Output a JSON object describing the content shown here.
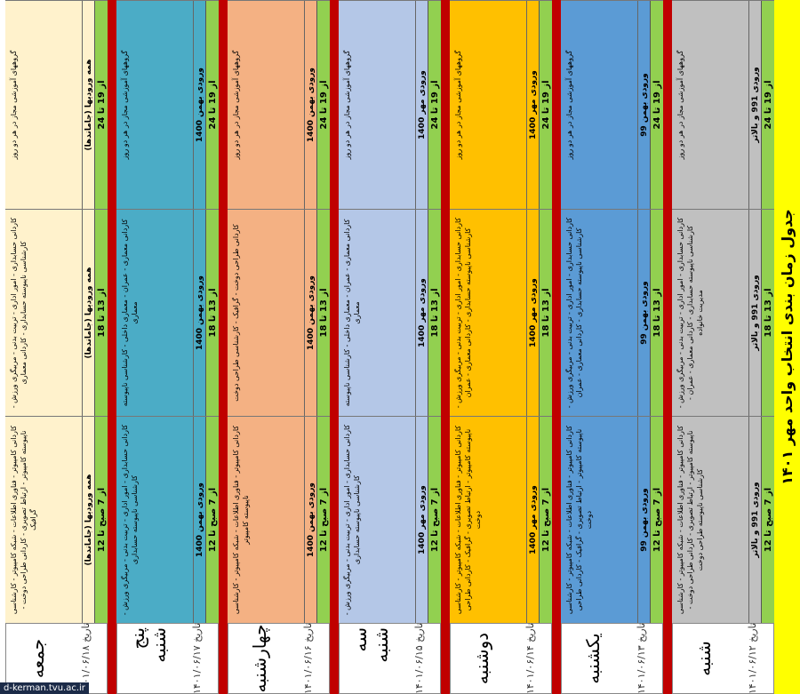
{
  "title": "جدول زمان بندی انتخاب واحد مهر ۱۴۰۱",
  "days": [
    {
      "name": "شنبه",
      "date": "تاریخ ۱۴۰۱/۰۶/۱۲",
      "color": "#c0c0c0",
      "slots": [
        {
          "time": "از 7 صبح تا 12",
          "entry": "ورودی 991 و بالاتر",
          "majors": "کاردانی کامپیوتر - فناوری اطلاعات - شبکه کامپیوتر - کارشناسی ناپیوسته کامپیوتر - ارتباط تصویری - کاردانی طراحی دوخت - کارشناسی ناپیوسته طراحی دوخت"
        },
        {
          "time": "از 13 تا 18",
          "entry": "ورودی 991 و بالاتر",
          "majors": "کاردانی حسابداری - امور اداری - تربیت بدنی - مربیگری ورزش - کارشناسی ناپیوسته حسابداری - کاردانی معماری - عمران - مدیریت خانواده"
        },
        {
          "time": "از 19 تا 24",
          "entry": "ورودی 991 و بالاتر",
          "majors": "گروههای آموزشی مجاز در هر دو روز"
        }
      ]
    },
    {
      "name": "یکشنبه",
      "date": "تاریخ ۱۴۰۱/۰۶/۱۳",
      "color": "#5b9bd5",
      "slots": [
        {
          "time": "از 7 صبح تا 12",
          "entry": "ورودی بهمن 99",
          "majors": "کاردانی کامپیوتر - فناوری اطلاعات - شبکه کامپیوتر - کارشناسی ناپیوسته کامپیوتر - ارتباط تصویری - گرافیک - کاردانی طراحی دوخت"
        },
        {
          "time": "از 13 تا 18",
          "entry": "ورودی بهمن 99",
          "majors": "کاردانی حسابداری - امور اداری - تربیت بدنی - مربیگری ورزش - کارشناسی ناپیوسته حسابداری - کاردانی معماری - عمران"
        },
        {
          "time": "از 19 تا 24",
          "entry": "ورودی بهمن 99",
          "majors": "گروههای آموزشی مجاز در هر دو روز"
        }
      ]
    },
    {
      "name": "دوشنبه",
      "date": "تاریخ ۱۴۰۱/۰۶/۱۴",
      "color": "#ffc000",
      "slots": [
        {
          "time": "از 7 صبح تا 12",
          "entry": "ورودی مهر 1400",
          "majors": "کاردانی کامپیوتر - فناوری اطلاعات - شبکه کامپیوتر - کارشناسی ناپیوسته کامپیوتر - ارتباط تصویری - گرافیک - کاردانی طراحی دوخت"
        },
        {
          "time": "از 13 تا 18",
          "entry": "ورودی مهر 1400",
          "majors": "کاردانی حسابداری - امور اداری - تربیت بدنی - مربیگری ورزش - کارشناسی ناپیوسته حسابداری - کاردانی معماری - عمران"
        },
        {
          "time": "از 19 تا 24",
          "entry": "ورودی مهر 1400",
          "majors": "گروههای آموزشی مجاز در هر دو روز"
        }
      ]
    },
    {
      "name": "سه شنبه",
      "date": "تاریخ ۱۴۰۱/۰۶/۱۵",
      "color": "#b4c7e7",
      "slots": [
        {
          "time": "از 7 صبح تا 12",
          "entry": "ورودی مهر 1400",
          "majors": "کاردانی حسابداری - امور اداری - تربیت بدنی - مربیگری ورزش - کارشناسی ناپیوسته حسابداری"
        },
        {
          "time": "از 13 تا 18",
          "entry": "ورودی مهر 1400",
          "majors": "کاردانی معماری - عمران - معماری داخلی - کارشناسی ناپیوسته معماری"
        },
        {
          "time": "از 19 تا 24",
          "entry": "ورودی مهر 1400",
          "majors": "گروههای آموزشی مجاز در هر دو روز"
        }
      ]
    },
    {
      "name": "چهارشنبه",
      "date": "تاریخ ۱۴۰۱/۰۶/۱۶",
      "color": "#f4b183",
      "slots": [
        {
          "time": "از 7 صبح تا 12",
          "entry": "ورودی بهمن 1400",
          "majors": "کاردانی کامپیوتر - فناوری اطلاعات - شبکه کامپیوتر - کارشناسی ناپیوسته کامپیوتر"
        },
        {
          "time": "از 13 تا 18",
          "entry": "ورودی بهمن 1400",
          "majors": "کاردانی طراحی دوخت - گرافیک - کارشناسی طراحی دوخت"
        },
        {
          "time": "از 19 تا 24",
          "entry": "ورودی بهمن 1400",
          "majors": "گروههای آموزشی مجاز در هر دو روز"
        }
      ]
    },
    {
      "name": "پنج شنبه",
      "date": "تاریخ ۱۴۰۱/۰۶/۱۷",
      "color": "#4bacc6",
      "slots": [
        {
          "time": "از 7 صبح تا 12",
          "entry": "ورودی بهمن 1400",
          "majors": "کاردانی حسابداری - امور اداری - تربیت بدنی - مربیگری ورزش - کارشناسی ناپیوسته حسابداری"
        },
        {
          "time": "از 13 تا 18",
          "entry": "ورودی بهمن 1400",
          "majors": "کاردانی معماری - عمران - معماری داخلی - کارشناسی ناپیوسته معماری"
        },
        {
          "time": "از 19 تا 24",
          "entry": "ورودی بهمن 1400",
          "majors": "گروههای آموزشی مجاز در هر دو روز"
        }
      ]
    },
    {
      "name": "جمعه",
      "date": "تاریخ ۱۴۰۱/۰۶/۱۸",
      "color": "#fff2cc",
      "slots": [
        {
          "time": "از 7 صبح تا 12",
          "entry": "همه ورودیها (جاماندها)",
          "majors": "کاردانی کامپیوتر - فناوری اطلاعات - شبکه کامپیوتر - کارشناسی ناپیوسته کامپیوتر - ارتباط تصویری - کاردانی طراحی دوخت - گرافیک"
        },
        {
          "time": "از 13 تا 18",
          "entry": "همه ورودیها (جاماندها)",
          "majors": "کاردانی حسابداری - امور اداری - تربیت بدنی - مربیگری ورزش - کارشناسی ناپیوسته حسابداری - کاردانی معماری"
        },
        {
          "time": "از 19 تا 24",
          "entry": "همه ورودیها (جاماندها)",
          "majors": "گروههای آموزشی مجاز در هر دو روز"
        }
      ]
    }
  ],
  "watermark": "d-kerman.tvu.ac.ir"
}
